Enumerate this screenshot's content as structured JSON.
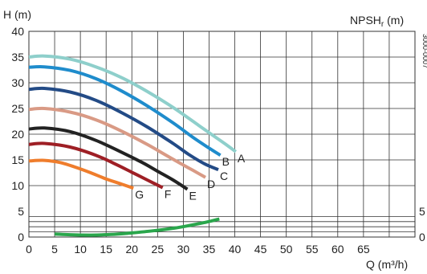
{
  "chart_data": {
    "type": "line",
    "ylabel": "H (m)",
    "y2label": "NPSH",
    "y2label_subscript": "r",
    "y2label_unit": " (m)",
    "xlabel": "Q (m³/h)",
    "code": "3000-0007",
    "x_range": [
      0,
      75
    ],
    "y_range": [
      0,
      40
    ],
    "grid": true,
    "x_ticks": [
      "0",
      "5",
      "10",
      "15",
      "20",
      "25",
      "30",
      "35",
      "40",
      "45",
      "50",
      "55",
      "60",
      "65"
    ],
    "x_tick_values": [
      0,
      5,
      10,
      15,
      20,
      25,
      30,
      35,
      40,
      45,
      50,
      55,
      60,
      65
    ],
    "y_ticks": [
      "0",
      "5",
      "10",
      "15",
      "20",
      "25",
      "30",
      "35",
      "40"
    ],
    "y_tick_values": [
      0,
      5,
      10,
      15,
      20,
      25,
      30,
      35,
      40
    ],
    "y2_ticks": [
      "0",
      "5"
    ],
    "y2_tick_values": [
      0,
      5
    ],
    "npsh_grid_values": [
      1,
      2,
      3,
      4
    ],
    "series": [
      {
        "name": "A",
        "color": "#8ecfcb",
        "x": [
          0,
          3,
          8,
          13,
          18,
          23,
          28,
          33,
          36,
          38,
          40.2
        ],
        "y": [
          35,
          35.2,
          34.6,
          33.1,
          31,
          28.3,
          25.2,
          21.7,
          19.6,
          18.2,
          16.6
        ]
      },
      {
        "name": "B",
        "color": "#1f8ccc",
        "x": [
          0,
          3,
          8,
          13,
          18,
          23,
          28,
          32,
          35,
          37.2
        ],
        "y": [
          33,
          33.1,
          32.4,
          30.8,
          28.4,
          25.5,
          22.2,
          19.3,
          17.3,
          15.9
        ]
      },
      {
        "name": "C",
        "color": "#234b86",
        "x": [
          0,
          3,
          8,
          13,
          18,
          23,
          28,
          31,
          34,
          36.8
        ],
        "y": [
          28.7,
          28.9,
          28.2,
          26.6,
          24.2,
          21.4,
          18.2,
          16.1,
          14.3,
          13.1
        ]
      },
      {
        "name": "D",
        "color": "#d99a85",
        "x": [
          0,
          3,
          8,
          13,
          18,
          23,
          27,
          30,
          32,
          34.3
        ],
        "y": [
          24.8,
          25,
          24.3,
          22.8,
          20.6,
          18,
          15.7,
          14,
          12.9,
          11.6
        ]
      },
      {
        "name": "E",
        "color": "#222222",
        "x": [
          0,
          3,
          8,
          13,
          18,
          22,
          25,
          28,
          30.8
        ],
        "y": [
          21,
          21.2,
          20.5,
          18.8,
          16.5,
          14.5,
          12.8,
          11.1,
          9.3
        ]
      },
      {
        "name": "F",
        "color": "#9e1f25",
        "x": [
          0,
          3,
          8,
          13,
          17,
          20,
          23,
          26
        ],
        "y": [
          18,
          18.2,
          17.5,
          15.9,
          14.1,
          12.6,
          11.1,
          9.6
        ]
      },
      {
        "name": "G",
        "color": "#ef7d2c",
        "x": [
          0,
          3,
          6,
          9,
          12,
          15,
          18,
          20.3
        ],
        "y": [
          14.8,
          14.9,
          14.5,
          13.6,
          12.5,
          11.3,
          10.3,
          9.5
        ]
      }
    ],
    "npsh_series": {
      "color": "#2aa64c",
      "x": [
        5,
        8,
        12,
        16,
        20,
        24,
        28,
        31,
        34,
        37
      ],
      "y": [
        0.6,
        0.45,
        0.38,
        0.5,
        0.8,
        1.2,
        1.7,
        2.2,
        2.8,
        3.5
      ]
    }
  }
}
